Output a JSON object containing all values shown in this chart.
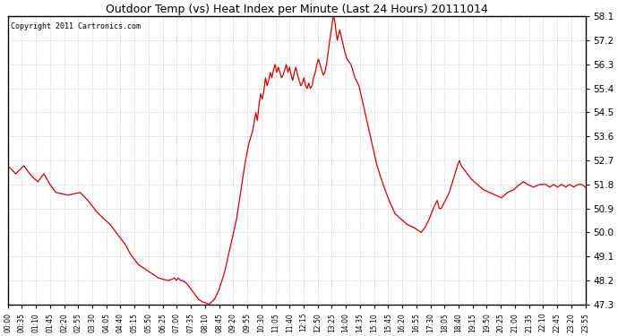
{
  "title": "Outdoor Temp (vs) Heat Index per Minute (Last 24 Hours) 20111014",
  "copyright": "Copyright 2011 Cartronics.com",
  "line_color": "#cc0000",
  "background_color": "#ffffff",
  "grid_color": "#aaaaaa",
  "ylim": [
    47.3,
    58.1
  ],
  "yticks": [
    47.3,
    48.2,
    49.1,
    50.0,
    50.9,
    51.8,
    52.7,
    53.6,
    54.5,
    55.4,
    56.3,
    57.2,
    58.1
  ],
  "xtick_labels": [
    "00:00",
    "00:35",
    "01:10",
    "01:45",
    "02:20",
    "02:55",
    "03:30",
    "04:05",
    "04:40",
    "05:15",
    "05:50",
    "06:25",
    "07:00",
    "07:35",
    "08:10",
    "08:45",
    "09:20",
    "09:55",
    "10:30",
    "11:05",
    "11:40",
    "12:15",
    "12:50",
    "13:25",
    "14:00",
    "14:35",
    "15:10",
    "15:45",
    "16:20",
    "16:55",
    "17:30",
    "18:05",
    "18:40",
    "19:15",
    "19:50",
    "20:25",
    "21:00",
    "21:35",
    "22:10",
    "22:45",
    "23:20",
    "23:55"
  ],
  "keypoints": [
    [
      0,
      52.5
    ],
    [
      20,
      52.2
    ],
    [
      40,
      52.5
    ],
    [
      60,
      52.1
    ],
    [
      75,
      51.9
    ],
    [
      90,
      52.2
    ],
    [
      105,
      51.8
    ],
    [
      120,
      51.5
    ],
    [
      150,
      51.4
    ],
    [
      180,
      51.5
    ],
    [
      200,
      51.2
    ],
    [
      220,
      50.8
    ],
    [
      240,
      50.5
    ],
    [
      255,
      50.3
    ],
    [
      270,
      50.0
    ],
    [
      285,
      49.7
    ],
    [
      295,
      49.5
    ],
    [
      305,
      49.2
    ],
    [
      315,
      49.0
    ],
    [
      325,
      48.8
    ],
    [
      335,
      48.7
    ],
    [
      345,
      48.6
    ],
    [
      355,
      48.5
    ],
    [
      365,
      48.4
    ],
    [
      375,
      48.3
    ],
    [
      385,
      48.25
    ],
    [
      400,
      48.2
    ],
    [
      410,
      48.25
    ],
    [
      415,
      48.3
    ],
    [
      420,
      48.2
    ],
    [
      425,
      48.3
    ],
    [
      430,
      48.2
    ],
    [
      435,
      48.2
    ],
    [
      445,
      48.1
    ],
    [
      455,
      47.9
    ],
    [
      465,
      47.7
    ],
    [
      475,
      47.5
    ],
    [
      485,
      47.4
    ],
    [
      495,
      47.35
    ],
    [
      500,
      47.3
    ],
    [
      505,
      47.35
    ],
    [
      515,
      47.5
    ],
    [
      525,
      47.8
    ],
    [
      540,
      48.5
    ],
    [
      555,
      49.5
    ],
    [
      570,
      50.5
    ],
    [
      580,
      51.5
    ],
    [
      590,
      52.5
    ],
    [
      600,
      53.3
    ],
    [
      610,
      53.8
    ],
    [
      618,
      54.5
    ],
    [
      622,
      54.2
    ],
    [
      626,
      54.8
    ],
    [
      630,
      55.2
    ],
    [
      634,
      55.0
    ],
    [
      638,
      55.3
    ],
    [
      642,
      55.8
    ],
    [
      646,
      55.5
    ],
    [
      650,
      55.7
    ],
    [
      654,
      56.0
    ],
    [
      658,
      55.8
    ],
    [
      662,
      56.1
    ],
    [
      666,
      56.3
    ],
    [
      670,
      56.0
    ],
    [
      674,
      56.2
    ],
    [
      678,
      56.0
    ],
    [
      682,
      55.8
    ],
    [
      686,
      55.9
    ],
    [
      690,
      56.1
    ],
    [
      694,
      56.3
    ],
    [
      698,
      56.0
    ],
    [
      702,
      56.2
    ],
    [
      706,
      55.9
    ],
    [
      710,
      55.7
    ],
    [
      714,
      56.0
    ],
    [
      718,
      56.2
    ],
    [
      722,
      55.9
    ],
    [
      726,
      55.7
    ],
    [
      730,
      55.5
    ],
    [
      734,
      55.6
    ],
    [
      738,
      55.8
    ],
    [
      742,
      55.5
    ],
    [
      746,
      55.4
    ],
    [
      750,
      55.6
    ],
    [
      754,
      55.4
    ],
    [
      758,
      55.5
    ],
    [
      762,
      55.8
    ],
    [
      766,
      56.0
    ],
    [
      770,
      56.3
    ],
    [
      774,
      56.5
    ],
    [
      778,
      56.3
    ],
    [
      782,
      56.1
    ],
    [
      786,
      55.9
    ],
    [
      790,
      56.0
    ],
    [
      794,
      56.3
    ],
    [
      798,
      56.7
    ],
    [
      802,
      57.2
    ],
    [
      806,
      57.6
    ],
    [
      810,
      58.0
    ],
    [
      812,
      58.1
    ],
    [
      815,
      57.9
    ],
    [
      818,
      57.5
    ],
    [
      821,
      57.2
    ],
    [
      824,
      57.4
    ],
    [
      827,
      57.6
    ],
    [
      830,
      57.4
    ],
    [
      833,
      57.2
    ],
    [
      836,
      57.0
    ],
    [
      839,
      56.8
    ],
    [
      845,
      56.5
    ],
    [
      855,
      56.3
    ],
    [
      865,
      55.8
    ],
    [
      875,
      55.5
    ],
    [
      890,
      54.5
    ],
    [
      905,
      53.5
    ],
    [
      920,
      52.5
    ],
    [
      935,
      51.8
    ],
    [
      950,
      51.2
    ],
    [
      965,
      50.7
    ],
    [
      980,
      50.5
    ],
    [
      995,
      50.3
    ],
    [
      1010,
      50.2
    ],
    [
      1020,
      50.1
    ],
    [
      1030,
      50.0
    ],
    [
      1040,
      50.2
    ],
    [
      1050,
      50.5
    ],
    [
      1060,
      50.9
    ],
    [
      1070,
      51.2
    ],
    [
      1075,
      50.9
    ],
    [
      1080,
      50.9
    ],
    [
      1090,
      51.2
    ],
    [
      1100,
      51.5
    ],
    [
      1110,
      52.0
    ],
    [
      1120,
      52.5
    ],
    [
      1125,
      52.7
    ],
    [
      1130,
      52.5
    ],
    [
      1140,
      52.3
    ],
    [
      1155,
      52.0
    ],
    [
      1170,
      51.8
    ],
    [
      1185,
      51.6
    ],
    [
      1200,
      51.5
    ],
    [
      1215,
      51.4
    ],
    [
      1230,
      51.3
    ],
    [
      1245,
      51.5
    ],
    [
      1260,
      51.6
    ],
    [
      1275,
      51.8
    ],
    [
      1285,
      51.9
    ],
    [
      1295,
      51.8
    ],
    [
      1310,
      51.7
    ],
    [
      1325,
      51.8
    ],
    [
      1340,
      51.8
    ],
    [
      1350,
      51.7
    ],
    [
      1360,
      51.8
    ],
    [
      1370,
      51.7
    ],
    [
      1380,
      51.8
    ],
    [
      1390,
      51.7
    ],
    [
      1400,
      51.8
    ],
    [
      1410,
      51.7
    ],
    [
      1420,
      51.8
    ],
    [
      1430,
      51.8
    ],
    [
      1439,
      51.7
    ]
  ]
}
